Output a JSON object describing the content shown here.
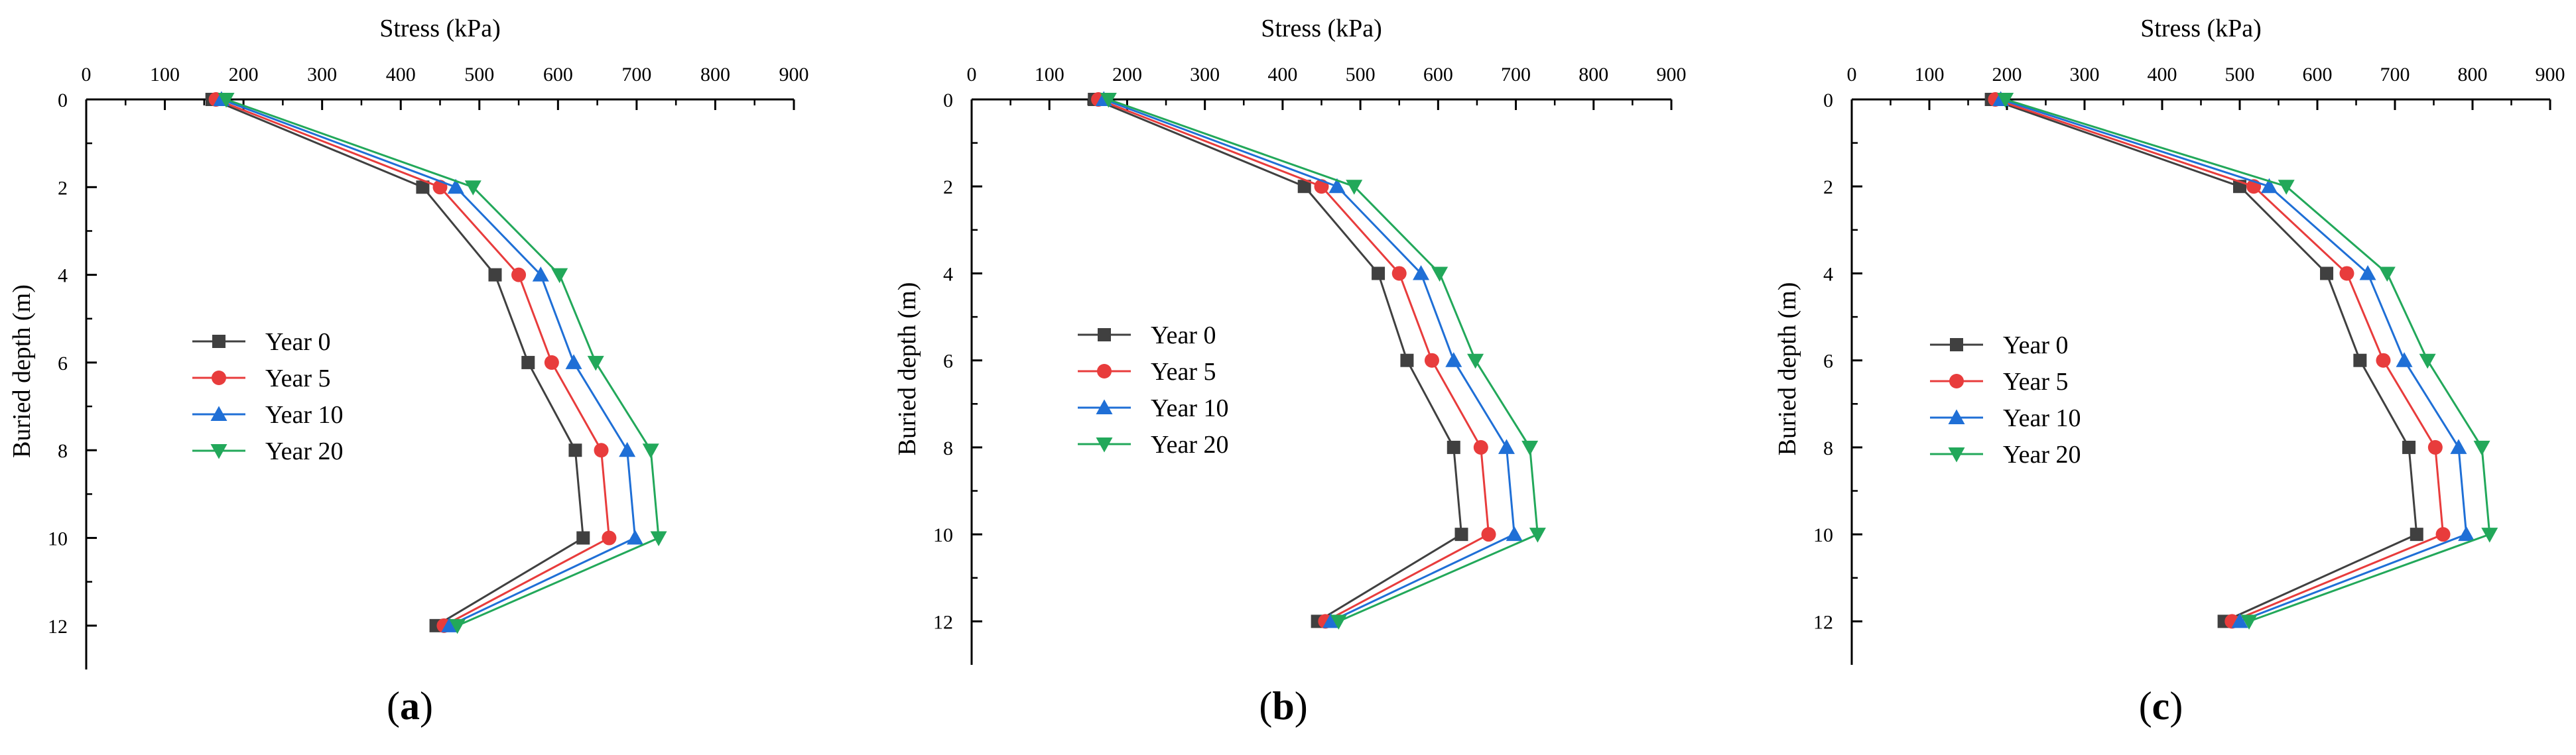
{
  "chart_data": [
    {
      "type": "line",
      "panel_label": "a",
      "xlabel": "Stress (kPa)",
      "ylabel": "Buried depth (m)",
      "xlim": [
        0,
        900
      ],
      "ylim": [
        0,
        13
      ],
      "y_inverted": true,
      "x_axis_position": "top",
      "xticks": [
        0,
        100,
        200,
        300,
        400,
        500,
        600,
        700,
        800,
        900
      ],
      "yticks": [
        0,
        2,
        4,
        6,
        8,
        10,
        12
      ],
      "grid": false,
      "legend_position": "center-left",
      "depth": [
        0,
        2,
        4,
        6,
        8,
        10,
        12
      ],
      "series": [
        {
          "name": "Year 0",
          "color": "#404040",
          "marker": "square",
          "x": [
            160,
            428,
            520,
            562,
            622,
            632,
            445
          ]
        },
        {
          "name": "Year 5",
          "color": "#e83c3c",
          "marker": "circle",
          "x": [
            165,
            450,
            550,
            592,
            655,
            665,
            455
          ]
        },
        {
          "name": "Year 10",
          "color": "#1f6fd6",
          "marker": "triangle-up",
          "x": [
            172,
            470,
            578,
            620,
            688,
            698,
            462
          ]
        },
        {
          "name": "Year 20",
          "color": "#22a85a",
          "marker": "triangle-down",
          "x": [
            178,
            492,
            602,
            648,
            718,
            728,
            472
          ]
        }
      ]
    },
    {
      "type": "line",
      "panel_label": "b",
      "xlabel": "Stress (kPa)",
      "ylabel": "Buried depth (m)",
      "xlim": [
        0,
        900
      ],
      "ylim": [
        0,
        13
      ],
      "y_inverted": true,
      "x_axis_position": "top",
      "xticks": [
        0,
        100,
        200,
        300,
        400,
        500,
        600,
        700,
        800,
        900
      ],
      "yticks": [
        0,
        2,
        4,
        6,
        8,
        10,
        12
      ],
      "grid": false,
      "legend_position": "center-left",
      "depth": [
        0,
        2,
        4,
        6,
        8,
        10,
        12
      ],
      "series": [
        {
          "name": "Year 0",
          "color": "#404040",
          "marker": "square",
          "x": [
            158,
            428,
            523,
            560,
            620,
            630,
            445
          ]
        },
        {
          "name": "Year 5",
          "color": "#e83c3c",
          "marker": "circle",
          "x": [
            163,
            450,
            550,
            592,
            655,
            665,
            455
          ]
        },
        {
          "name": "Year 10",
          "color": "#1f6fd6",
          "marker": "triangle-up",
          "x": [
            170,
            470,
            578,
            620,
            688,
            698,
            462
          ]
        },
        {
          "name": "Year 20",
          "color": "#22a85a",
          "marker": "triangle-down",
          "x": [
            176,
            492,
            602,
            648,
            718,
            728,
            472
          ]
        }
      ]
    },
    {
      "type": "line",
      "panel_label": "c",
      "xlabel": "Stress (kPa)",
      "ylabel": "Buried depth (m)",
      "xlim": [
        0,
        900
      ],
      "ylim": [
        0,
        13
      ],
      "y_inverted": true,
      "x_axis_position": "top",
      "xticks": [
        0,
        100,
        200,
        300,
        400,
        500,
        600,
        700,
        800,
        900
      ],
      "yticks": [
        0,
        2,
        4,
        6,
        8,
        10,
        12
      ],
      "grid": false,
      "legend_position": "center-left",
      "depth": [
        0,
        2,
        4,
        6,
        8,
        10,
        12
      ],
      "series": [
        {
          "name": "Year 0",
          "color": "#404040",
          "marker": "square",
          "x": [
            180,
            500,
            612,
            655,
            718,
            728,
            480
          ]
        },
        {
          "name": "Year 5",
          "color": "#e83c3c",
          "marker": "circle",
          "x": [
            185,
            518,
            638,
            685,
            752,
            762,
            490
          ]
        },
        {
          "name": "Year 10",
          "color": "#1f6fd6",
          "marker": "triangle-up",
          "x": [
            192,
            538,
            665,
            712,
            782,
            792,
            500
          ]
        },
        {
          "name": "Year 20",
          "color": "#22a85a",
          "marker": "triangle-down",
          "x": [
            198,
            560,
            690,
            742,
            812,
            822,
            512
          ]
        }
      ]
    }
  ]
}
